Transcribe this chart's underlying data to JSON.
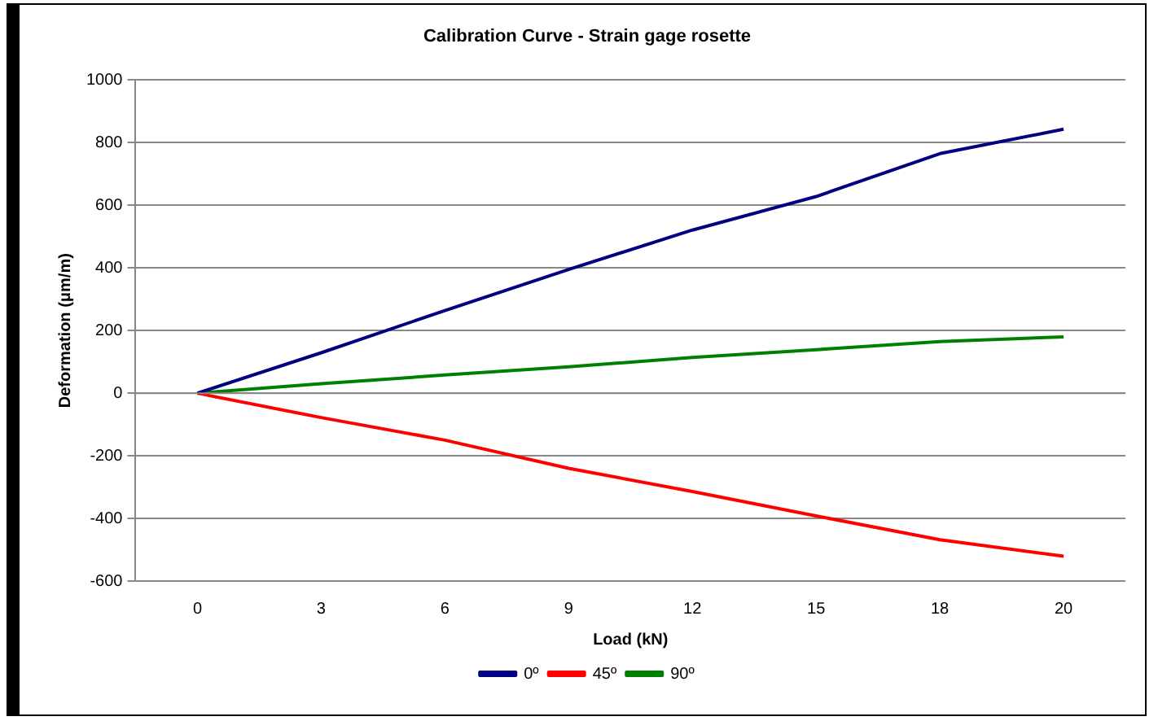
{
  "chart_data": {
    "type": "line",
    "title": "Calibration Curve - Strain gage rosette",
    "xlabel": "Load (kN)",
    "ylabel": "Deformation (μm/m)",
    "categories": [
      "0",
      "3",
      "6",
      "9",
      "12",
      "15",
      "18",
      "20"
    ],
    "series": [
      {
        "name": "0º",
        "color": "#000080",
        "values": [
          0,
          129,
          264,
          395,
          521,
          628,
          765,
          843
        ]
      },
      {
        "name": "45º",
        "color": "#ff0000",
        "values": [
          0,
          -78,
          -150,
          -240,
          -314,
          -392,
          -468,
          -521
        ]
      },
      {
        "name": "90º",
        "color": "#008000",
        "values": [
          0,
          30,
          58,
          84,
          114,
          139,
          165,
          180
        ]
      }
    ],
    "ylim": [
      -600,
      1000
    ],
    "yticks": [
      -600,
      -400,
      -200,
      0,
      200,
      400,
      600,
      800,
      1000
    ],
    "grid": "y",
    "legend": "bottom",
    "marker": "none",
    "line_style": "solid"
  }
}
